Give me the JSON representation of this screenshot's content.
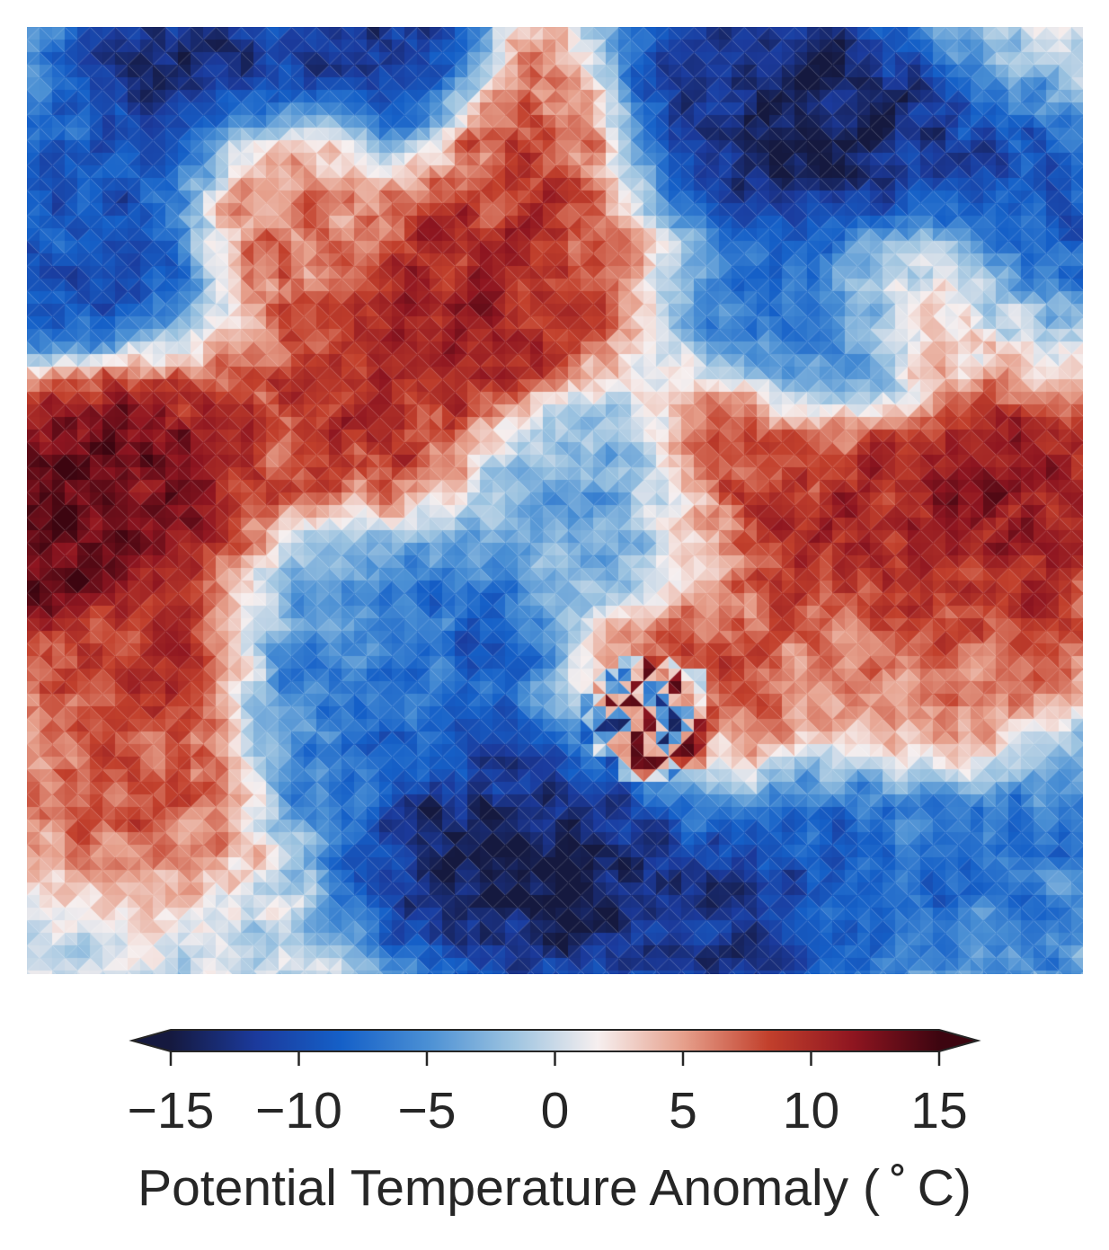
{
  "chart_data": {
    "type": "heatmap",
    "title": "",
    "colorbar": {
      "label": "Potential Temperature Anomaly ($^\\circ$C)",
      "label_display": "Potential Temperature Anomaly ( ˚ C)",
      "vmin": -15,
      "vmax": 15,
      "ticks": [
        -15,
        -10,
        -5,
        0,
        5,
        10,
        15
      ],
      "tick_labels": [
        "−15",
        "−10",
        "−5",
        "0",
        "5",
        "10",
        "15"
      ],
      "extend": "both",
      "orientation": "horizontal",
      "placement": "bottom"
    },
    "colormap": [
      "#15193f",
      "#1b3a9c",
      "#1560c8",
      "#4a8fd4",
      "#9cc3e0",
      "#f6efef",
      "#e6a08c",
      "#c2402c",
      "#8e1520",
      "#3d0510"
    ],
    "axes_visible": false,
    "grid": false,
    "features": [
      {
        "x": 0.45,
        "y": 0.25,
        "value": 10
      },
      {
        "x": 0.4,
        "y": 0.3,
        "value": 12
      },
      {
        "x": 0.3,
        "y": 0.4,
        "value": 10
      },
      {
        "x": 0.1,
        "y": 0.48,
        "value": 14
      },
      {
        "x": 0.02,
        "y": 0.52,
        "value": 15
      },
      {
        "x": 0.12,
        "y": 0.68,
        "value": 10
      },
      {
        "x": 0.1,
        "y": 0.8,
        "value": 8
      },
      {
        "x": 0.25,
        "y": 0.18,
        "value": 7
      },
      {
        "x": 0.5,
        "y": 0.12,
        "value": 9
      },
      {
        "x": 0.68,
        "y": 0.48,
        "value": 9
      },
      {
        "x": 0.78,
        "y": 0.52,
        "value": 11
      },
      {
        "x": 0.93,
        "y": 0.5,
        "value": 13
      },
      {
        "x": 0.9,
        "y": 0.6,
        "value": 10
      },
      {
        "x": 0.85,
        "y": 0.7,
        "value": 6
      },
      {
        "x": 0.85,
        "y": 0.27,
        "value": 6
      },
      {
        "x": 0.15,
        "y": 0.05,
        "value": -14
      },
      {
        "x": 0.32,
        "y": 0.03,
        "value": -13
      },
      {
        "x": 0.63,
        "y": 0.08,
        "value": -13
      },
      {
        "x": 0.72,
        "y": 0.08,
        "value": -15
      },
      {
        "x": 0.8,
        "y": 0.15,
        "value": -15
      },
      {
        "x": 0.75,
        "y": 0.3,
        "value": -8
      },
      {
        "x": 0.92,
        "y": 0.2,
        "value": -11
      },
      {
        "x": 0.03,
        "y": 0.18,
        "value": -8
      },
      {
        "x": 0.06,
        "y": 0.22,
        "value": -12
      },
      {
        "x": 0.33,
        "y": 0.65,
        "value": -5
      },
      {
        "x": 0.3,
        "y": 0.72,
        "value": -8
      },
      {
        "x": 0.4,
        "y": 0.68,
        "value": -10
      },
      {
        "x": 0.5,
        "y": 0.9,
        "value": -15
      },
      {
        "x": 0.53,
        "y": 0.85,
        "value": -15
      },
      {
        "x": 0.42,
        "y": 0.88,
        "value": -14
      },
      {
        "x": 0.68,
        "y": 0.94,
        "value": -13
      },
      {
        "x": 0.8,
        "y": 0.88,
        "value": -9
      },
      {
        "x": 0.95,
        "y": 0.88,
        "value": -7
      },
      {
        "x": 0.55,
        "y": 0.52,
        "value": -4
      },
      {
        "x": 0.57,
        "y": 0.76,
        "value": -12
      },
      {
        "x": 0.6,
        "y": 0.72,
        "value": 15
      }
    ]
  }
}
